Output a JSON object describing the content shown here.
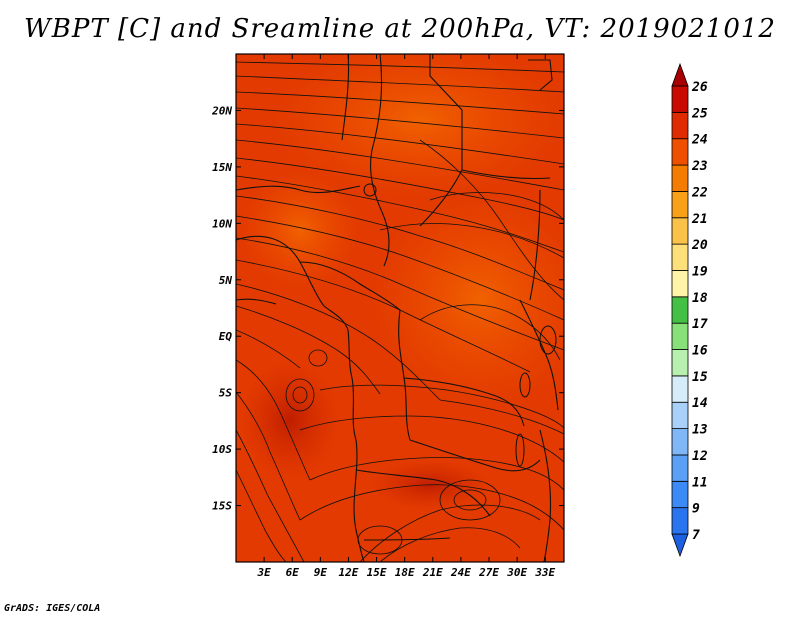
{
  "title": "WBPT [C] and Sreamline at 200hPa, VT: 2019021012",
  "footer": "GrADS: IGES/COLA",
  "map": {
    "lon_range": [
      0,
      35
    ],
    "lat_range": [
      -20,
      25
    ],
    "lon_ticks": [
      {
        "value": 3,
        "label": "3E"
      },
      {
        "value": 6,
        "label": "6E"
      },
      {
        "value": 9,
        "label": "9E"
      },
      {
        "value": 12,
        "label": "12E"
      },
      {
        "value": 15,
        "label": "15E"
      },
      {
        "value": 18,
        "label": "18E"
      },
      {
        "value": 21,
        "label": "21E"
      },
      {
        "value": 24,
        "label": "24E"
      },
      {
        "value": 27,
        "label": "27E"
      },
      {
        "value": 30,
        "label": "30E"
      },
      {
        "value": 33,
        "label": "33E"
      }
    ],
    "lat_ticks": [
      {
        "value": 20,
        "label": "20N"
      },
      {
        "value": 15,
        "label": "15N"
      },
      {
        "value": 10,
        "label": "10N"
      },
      {
        "value": 5,
        "label": "5N"
      },
      {
        "value": 0,
        "label": "EQ"
      },
      {
        "value": -5,
        "label": "5S"
      },
      {
        "value": -10,
        "label": "10S"
      },
      {
        "value": -15,
        "label": "15S"
      }
    ]
  },
  "colorbar": {
    "levels": [
      "7",
      "9",
      "11",
      "12",
      "13",
      "14",
      "15",
      "16",
      "17",
      "18",
      "19",
      "20",
      "21",
      "22",
      "23",
      "24",
      "25",
      "26"
    ],
    "colors": [
      "#1c5fe0",
      "#2a74f0",
      "#3c8af5",
      "#5aa0f5",
      "#80b8f7",
      "#a8d0f8",
      "#d6ecf8",
      "#b8f0b0",
      "#88e078",
      "#44c044",
      "#fff4a8",
      "#fde07a",
      "#fbc24a",
      "#f8a018",
      "#f47c00",
      "#ee5000",
      "#e02a00",
      "#c80a00",
      "#a80000"
    ]
  }
}
